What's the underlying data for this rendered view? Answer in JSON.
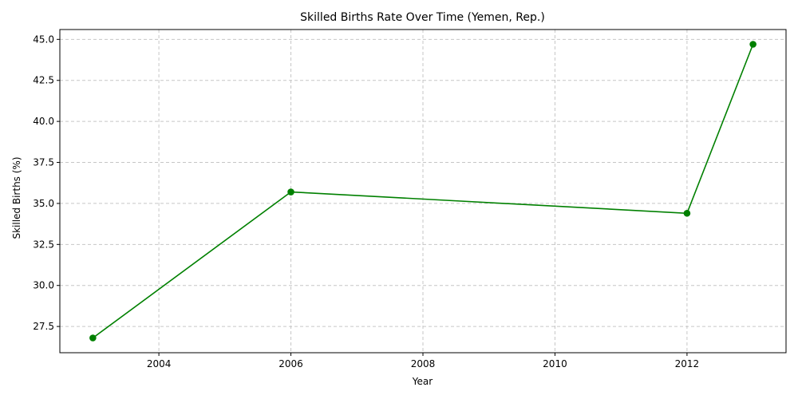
{
  "chart_data": {
    "type": "line",
    "title": "Skilled Births Rate Over Time (Yemen, Rep.)",
    "xlabel": "Year",
    "ylabel": "Skilled Births (%)",
    "x": [
      2003,
      2006,
      2012,
      2013
    ],
    "series": [
      {
        "values": [
          26.8,
          35.7,
          34.4,
          44.7
        ],
        "color": "#008000",
        "marker": "circle"
      }
    ],
    "xlim": [
      2002.5,
      2013.5
    ],
    "ylim": [
      25.9,
      45.6
    ],
    "xticks": [
      2004,
      2006,
      2008,
      2010,
      2012
    ],
    "yticks": [
      27.5,
      30.0,
      32.5,
      35.0,
      37.5,
      40.0,
      42.5,
      45.0
    ],
    "ytick_labels": [
      "27.5",
      "30.0",
      "32.5",
      "35.0",
      "37.5",
      "40.0",
      "42.5",
      "45.0"
    ],
    "grid": true,
    "grid_style": "dashed"
  }
}
